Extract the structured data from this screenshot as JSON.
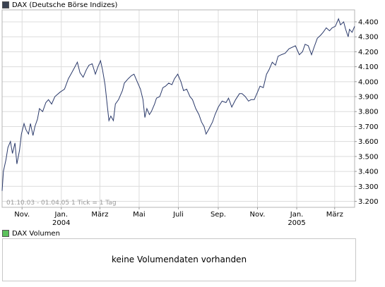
{
  "chart_data": {
    "type": "line",
    "title": "DAX (Deutsche Börse Indizes)",
    "series": [
      {
        "name": "DAX",
        "color": "#2b3a6b",
        "points": [
          [
            "2003-10-01",
            3270
          ],
          [
            "2003-10-03",
            3400
          ],
          [
            "2003-10-07",
            3480
          ],
          [
            "2003-10-10",
            3560
          ],
          [
            "2003-10-14",
            3600
          ],
          [
            "2003-10-17",
            3520
          ],
          [
            "2003-10-21",
            3590
          ],
          [
            "2003-10-24",
            3450
          ],
          [
            "2003-10-28",
            3540
          ],
          [
            "2003-10-31",
            3650
          ],
          [
            "2003-11-04",
            3720
          ],
          [
            "2003-11-07",
            3680
          ],
          [
            "2003-11-11",
            3650
          ],
          [
            "2003-11-14",
            3720
          ],
          [
            "2003-11-18",
            3640
          ],
          [
            "2003-11-21",
            3700
          ],
          [
            "2003-11-25",
            3750
          ],
          [
            "2003-11-28",
            3820
          ],
          [
            "2003-12-03",
            3800
          ],
          [
            "2003-12-08",
            3860
          ],
          [
            "2003-12-12",
            3880
          ],
          [
            "2003-12-17",
            3850
          ],
          [
            "2003-12-22",
            3900
          ],
          [
            "2003-12-30",
            3930
          ],
          [
            "2004-01-06",
            3950
          ],
          [
            "2004-01-12",
            4020
          ],
          [
            "2004-01-16",
            4050
          ],
          [
            "2004-01-21",
            4090
          ],
          [
            "2004-01-26",
            4130
          ],
          [
            "2004-01-30",
            4060
          ],
          [
            "2004-02-04",
            4030
          ],
          [
            "2004-02-09",
            4080
          ],
          [
            "2004-02-13",
            4110
          ],
          [
            "2004-02-18",
            4120
          ],
          [
            "2004-02-23",
            4050
          ],
          [
            "2004-02-27",
            4100
          ],
          [
            "2004-03-02",
            4140
          ],
          [
            "2004-03-05",
            4080
          ],
          [
            "2004-03-09",
            3980
          ],
          [
            "2004-03-12",
            3860
          ],
          [
            "2004-03-15",
            3740
          ],
          [
            "2004-03-18",
            3770
          ],
          [
            "2004-03-22",
            3740
          ],
          [
            "2004-03-25",
            3850
          ],
          [
            "2004-03-30",
            3880
          ],
          [
            "2004-04-05",
            3940
          ],
          [
            "2004-04-08",
            3990
          ],
          [
            "2004-04-14",
            4020
          ],
          [
            "2004-04-19",
            4040
          ],
          [
            "2004-04-23",
            4050
          ],
          [
            "2004-04-28",
            4000
          ],
          [
            "2004-05-03",
            3950
          ],
          [
            "2004-05-07",
            3880
          ],
          [
            "2004-05-10",
            3760
          ],
          [
            "2004-05-13",
            3820
          ],
          [
            "2004-05-17",
            3780
          ],
          [
            "2004-05-20",
            3800
          ],
          [
            "2004-05-25",
            3850
          ],
          [
            "2004-05-28",
            3890
          ],
          [
            "2004-06-02",
            3900
          ],
          [
            "2004-06-07",
            3960
          ],
          [
            "2004-06-11",
            3970
          ],
          [
            "2004-06-16",
            3990
          ],
          [
            "2004-06-21",
            3980
          ],
          [
            "2004-06-25",
            4020
          ],
          [
            "2004-06-30",
            4050
          ],
          [
            "2004-07-05",
            4000
          ],
          [
            "2004-07-09",
            3940
          ],
          [
            "2004-07-14",
            3950
          ],
          [
            "2004-07-19",
            3900
          ],
          [
            "2004-07-23",
            3880
          ],
          [
            "2004-07-28",
            3820
          ],
          [
            "2004-08-02",
            3780
          ],
          [
            "2004-08-06",
            3730
          ],
          [
            "2004-08-10",
            3700
          ],
          [
            "2004-08-13",
            3650
          ],
          [
            "2004-08-17",
            3680
          ],
          [
            "2004-08-23",
            3730
          ],
          [
            "2004-08-27",
            3780
          ],
          [
            "2004-09-01",
            3830
          ],
          [
            "2004-09-07",
            3870
          ],
          [
            "2004-09-13",
            3860
          ],
          [
            "2004-09-17",
            3890
          ],
          [
            "2004-09-22",
            3830
          ],
          [
            "2004-09-28",
            3880
          ],
          [
            "2004-10-04",
            3920
          ],
          [
            "2004-10-08",
            3920
          ],
          [
            "2004-10-13",
            3900
          ],
          [
            "2004-10-18",
            3870
          ],
          [
            "2004-10-22",
            3880
          ],
          [
            "2004-10-27",
            3880
          ],
          [
            "2004-11-01",
            3930
          ],
          [
            "2004-11-05",
            3970
          ],
          [
            "2004-11-10",
            3960
          ],
          [
            "2004-11-15",
            4050
          ],
          [
            "2004-11-19",
            4080
          ],
          [
            "2004-11-24",
            4130
          ],
          [
            "2004-11-29",
            4110
          ],
          [
            "2004-12-03",
            4170
          ],
          [
            "2004-12-08",
            4180
          ],
          [
            "2004-12-14",
            4190
          ],
          [
            "2004-12-20",
            4220
          ],
          [
            "2004-12-30",
            4240
          ],
          [
            "2005-01-05",
            4180
          ],
          [
            "2005-01-10",
            4200
          ],
          [
            "2005-01-14",
            4250
          ],
          [
            "2005-01-19",
            4240
          ],
          [
            "2005-01-24",
            4180
          ],
          [
            "2005-01-28",
            4230
          ],
          [
            "2005-02-02",
            4290
          ],
          [
            "2005-02-07",
            4310
          ],
          [
            "2005-02-11",
            4330
          ],
          [
            "2005-02-16",
            4360
          ],
          [
            "2005-02-21",
            4340
          ],
          [
            "2005-02-25",
            4360
          ],
          [
            "2005-03-02",
            4370
          ],
          [
            "2005-03-07",
            4420
          ],
          [
            "2005-03-10",
            4380
          ],
          [
            "2005-03-15",
            4400
          ],
          [
            "2005-03-18",
            4350
          ],
          [
            "2005-03-22",
            4300
          ],
          [
            "2005-03-24",
            4350
          ],
          [
            "2005-03-28",
            4330
          ],
          [
            "2005-04-01",
            4370
          ]
        ]
      }
    ],
    "y_ticks": [
      3200,
      3300,
      3400,
      3500,
      3600,
      3700,
      3800,
      3900,
      4000,
      4100,
      4200,
      4300,
      4400
    ],
    "y_tick_labels": [
      "3.200",
      "3.300",
      "3.400",
      "3.500",
      "3.600",
      "3.700",
      "3.800",
      "3.900",
      "4.000",
      "4.100",
      "4.200",
      "4.300",
      "4.400"
    ],
    "ylim": [
      3160,
      4480
    ],
    "xlim": [
      "2003-10-01",
      "2005-04-01"
    ],
    "x_ticks": [
      {
        "date": "2003-11-01",
        "label": "Nov.",
        "year": ""
      },
      {
        "date": "2004-01-01",
        "label": "Jan.",
        "year": "2004"
      },
      {
        "date": "2004-03-01",
        "label": "März",
        "year": ""
      },
      {
        "date": "2004-05-01",
        "label": "Mai",
        "year": ""
      },
      {
        "date": "2004-07-01",
        "label": "Juli",
        "year": ""
      },
      {
        "date": "2004-09-01",
        "label": "Sep.",
        "year": ""
      },
      {
        "date": "2004-11-01",
        "label": "Nov.",
        "year": ""
      },
      {
        "date": "2005-01-01",
        "label": "Jan.",
        "year": "2005"
      },
      {
        "date": "2005-03-01",
        "label": "März",
        "year": ""
      }
    ],
    "annotation": "01.10.03 - 01.04.05   1 Tick = 1 Tag",
    "grid": true
  },
  "volume_panel": {
    "legend": "DAX Volumen",
    "swatch_color": "#5cc25c",
    "message": "keine Volumendaten vorhanden"
  },
  "main_legend_swatch_color": "#3a4252"
}
